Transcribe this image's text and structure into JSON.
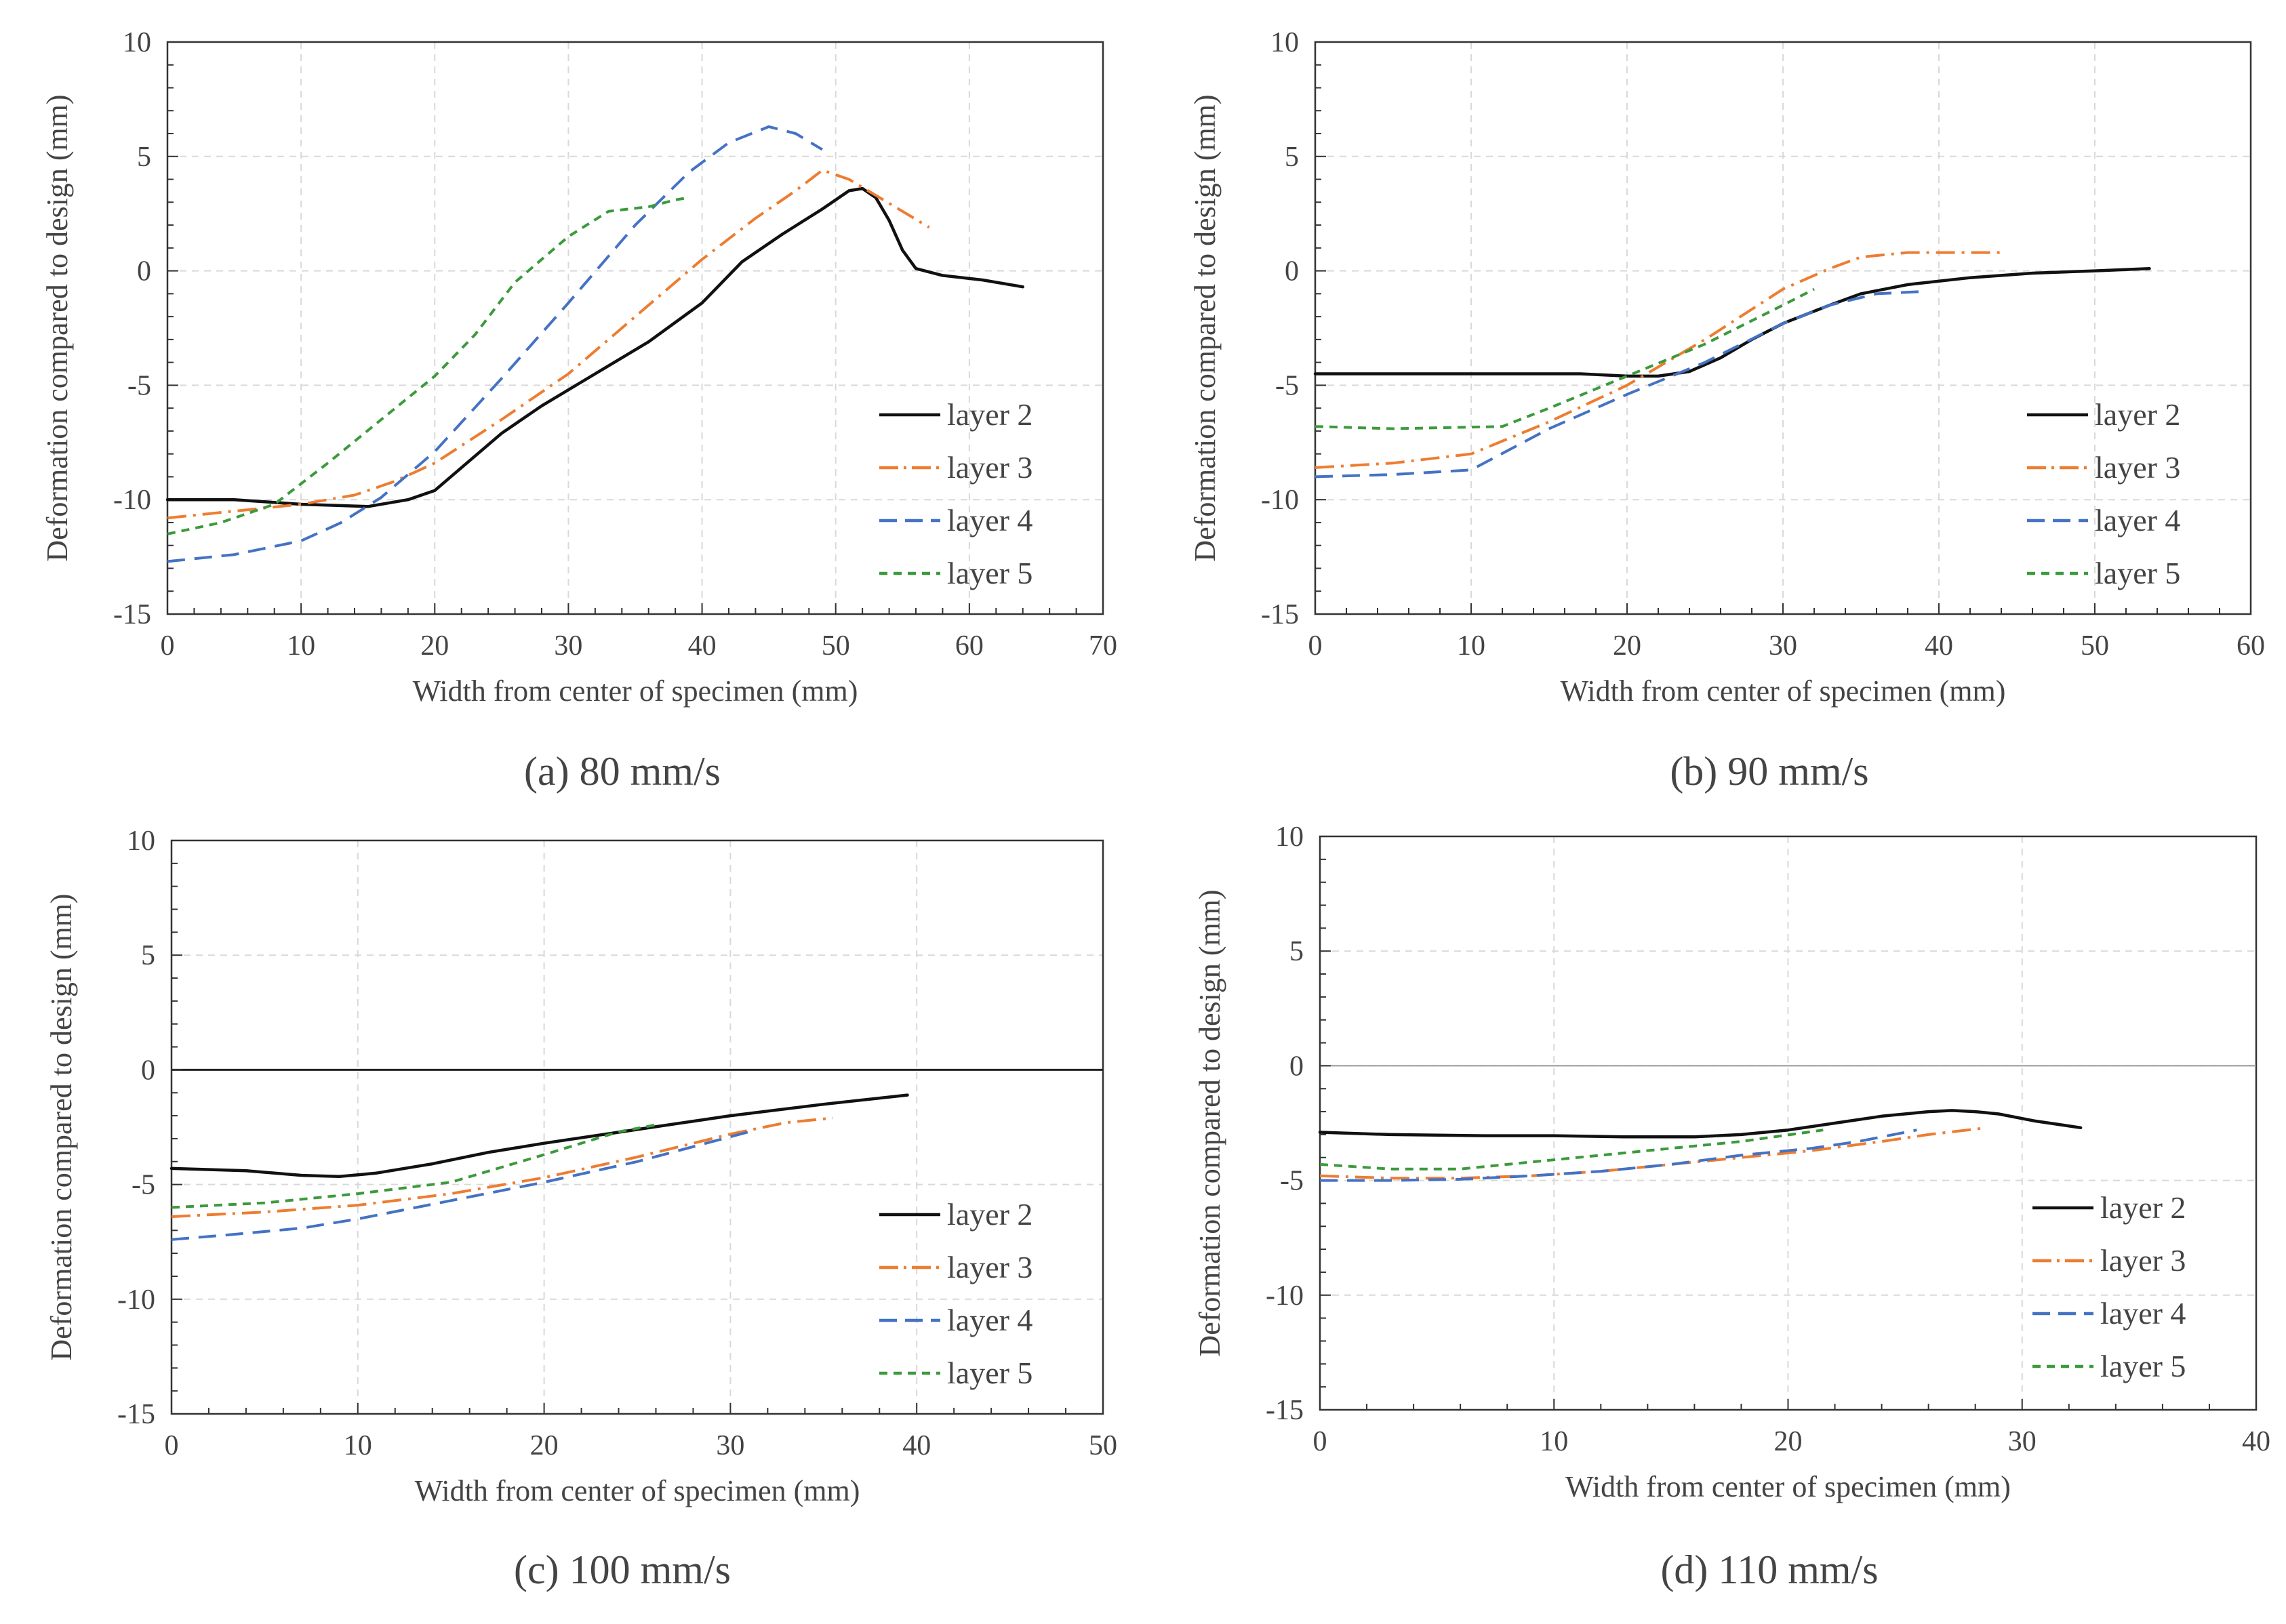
{
  "colors": {
    "layer2": "#111111",
    "layer3": "#ED7D31",
    "layer4": "#4472C4",
    "layer5": "#3C9A3C",
    "grid": "#D9D9D9",
    "axis": "#333333",
    "text": "#444444"
  },
  "chart_data": [
    {
      "type": "line",
      "caption": "(a) 80 mm/s",
      "xlabel": "Width from center of specimen (mm)",
      "ylabel": "Deformation compared to design (mm)",
      "xlim": [
        0,
        70
      ],
      "ylim": [
        -15,
        10
      ],
      "xticks": [
        0,
        10,
        20,
        30,
        40,
        50,
        60,
        70
      ],
      "yticks": [
        -15,
        -10,
        -5,
        0,
        5,
        10
      ],
      "grid": true,
      "zero_line": false,
      "legend_position": "bottom-right",
      "series": [
        {
          "name": "layer 2",
          "style": "solid",
          "color": "#111111",
          "x": [
            0,
            5,
            10,
            15,
            18,
            20,
            22,
            25,
            28,
            32,
            36,
            40,
            43,
            46,
            49,
            51,
            52,
            53,
            54,
            55,
            56,
            58,
            61,
            64
          ],
          "y": [
            -10,
            -10,
            -10.2,
            -10.3,
            -10,
            -9.6,
            -8.6,
            -7.1,
            -5.9,
            -4.5,
            -3.1,
            -1.4,
            0.4,
            1.6,
            2.7,
            3.5,
            3.6,
            3.2,
            2.2,
            0.9,
            0.1,
            -0.2,
            -0.4,
            -0.7
          ]
        },
        {
          "name": "layer 3",
          "style": "dashdot",
          "color": "#ED7D31",
          "x": [
            0,
            5,
            10,
            14,
            17,
            20,
            25,
            30,
            35,
            40,
            44,
            47,
            49,
            51,
            53,
            55,
            57
          ],
          "y": [
            -10.8,
            -10.5,
            -10.2,
            -9.8,
            -9.2,
            -8.4,
            -6.5,
            -4.5,
            -2.0,
            0.5,
            2.3,
            3.5,
            4.4,
            4.0,
            3.3,
            2.6,
            1.9
          ]
        },
        {
          "name": "layer 4",
          "style": "dashed",
          "color": "#4472C4",
          "x": [
            0,
            5,
            10,
            13,
            16,
            20,
            25,
            30,
            35,
            39,
            42,
            45,
            47,
            49
          ],
          "y": [
            -12.7,
            -12.4,
            -11.8,
            -11,
            -9.9,
            -7.9,
            -4.7,
            -1.4,
            2,
            4.3,
            5.6,
            6.3,
            6.0,
            5.3
          ]
        },
        {
          "name": "layer 5",
          "style": "dotted",
          "color": "#3C9A3C",
          "x": [
            0,
            4,
            8,
            12,
            16,
            20,
            23,
            26,
            30,
            33,
            36,
            38,
            39
          ],
          "y": [
            -11.5,
            -11,
            -10.2,
            -8.4,
            -6.5,
            -4.6,
            -2.8,
            -0.5,
            1.5,
            2.6,
            2.8,
            3.1,
            3.2
          ]
        }
      ]
    },
    {
      "type": "line",
      "caption": "(b) 90 mm/s",
      "xlabel": "Width from center of specimen (mm)",
      "ylabel": "Deformation compared to design (mm)",
      "xlim": [
        0,
        60
      ],
      "ylim": [
        -15,
        10
      ],
      "xticks": [
        0,
        10,
        20,
        30,
        40,
        50,
        60
      ],
      "yticks": [
        -15,
        -10,
        -5,
        0,
        5,
        10
      ],
      "grid": true,
      "zero_line": false,
      "legend_position": "bottom-right",
      "series": [
        {
          "name": "layer 2",
          "style": "solid",
          "color": "#111111",
          "x": [
            0,
            5,
            10,
            17,
            20,
            22,
            24,
            26,
            28,
            30,
            33,
            35,
            38,
            42,
            46,
            50,
            53.5
          ],
          "y": [
            -4.5,
            -4.5,
            -4.5,
            -4.5,
            -4.6,
            -4.6,
            -4.4,
            -3.8,
            -3.0,
            -2.3,
            -1.5,
            -1.0,
            -0.6,
            -0.3,
            -0.1,
            0.0,
            0.1
          ]
        },
        {
          "name": "layer 3",
          "style": "dashdot",
          "color": "#ED7D31",
          "x": [
            0,
            5,
            10,
            15,
            20,
            25,
            30,
            33,
            35,
            38,
            41,
            44
          ],
          "y": [
            -8.6,
            -8.4,
            -8.0,
            -6.6,
            -5.0,
            -3.0,
            -0.8,
            0.1,
            0.6,
            0.8,
            0.8,
            0.8
          ]
        },
        {
          "name": "layer 4",
          "style": "dashed",
          "color": "#4472C4",
          "x": [
            0,
            5,
            10,
            15,
            20,
            25,
            30,
            33,
            36,
            39
          ],
          "y": [
            -9.0,
            -8.9,
            -8.7,
            -6.9,
            -5.4,
            -4.0,
            -2.3,
            -1.5,
            -1.0,
            -0.9
          ]
        },
        {
          "name": "layer 5",
          "style": "dotted",
          "color": "#3C9A3C",
          "x": [
            0,
            5,
            12,
            15,
            20,
            25,
            30,
            32
          ],
          "y": [
            -6.8,
            -6.9,
            -6.8,
            -6.0,
            -4.6,
            -3.2,
            -1.5,
            -0.8
          ]
        }
      ]
    },
    {
      "type": "line",
      "caption": "(c) 100 mm/s",
      "xlabel": "Width from center of specimen (mm)",
      "ylabel": "Deformation compared to design (mm)",
      "xlim": [
        0,
        50
      ],
      "ylim": [
        -15,
        10
      ],
      "xticks": [
        0,
        10,
        20,
        30,
        40,
        50
      ],
      "yticks": [
        -15,
        -10,
        -5,
        0,
        5,
        10
      ],
      "grid": true,
      "zero_line": true,
      "legend_position": "bottom-right",
      "series": [
        {
          "name": "layer 2",
          "style": "solid",
          "color": "#111111",
          "x": [
            0,
            4,
            7,
            9,
            11,
            14,
            17,
            20,
            25,
            30,
            35,
            39.5
          ],
          "y": [
            -4.3,
            -4.4,
            -4.6,
            -4.65,
            -4.5,
            -4.1,
            -3.6,
            -3.2,
            -2.6,
            -2.0,
            -1.5,
            -1.1
          ]
        },
        {
          "name": "layer 3",
          "style": "dashdot",
          "color": "#ED7D31",
          "x": [
            0,
            5,
            10,
            15,
            20,
            25,
            30,
            33,
            35.5
          ],
          "y": [
            -6.4,
            -6.2,
            -5.9,
            -5.4,
            -4.7,
            -3.8,
            -2.8,
            -2.3,
            -2.1
          ]
        },
        {
          "name": "layer 4",
          "style": "dashed",
          "color": "#4472C4",
          "x": [
            0,
            3,
            7,
            10,
            15,
            20,
            25,
            31
          ],
          "y": [
            -7.4,
            -7.2,
            -6.9,
            -6.5,
            -5.7,
            -4.9,
            -4.0,
            -2.7
          ]
        },
        {
          "name": "layer 5",
          "style": "dotted",
          "color": "#3C9A3C",
          "x": [
            0,
            5,
            10,
            15,
            20,
            24,
            26
          ],
          "y": [
            -6.0,
            -5.8,
            -5.4,
            -4.9,
            -3.7,
            -2.7,
            -2.4
          ]
        }
      ]
    },
    {
      "type": "line",
      "caption": "(d) 110 mm/s",
      "xlabel": "Width from center of specimen (mm)",
      "ylabel": "Deformation compared to design (mm)",
      "xlim": [
        0,
        40
      ],
      "ylim": [
        -15,
        10
      ],
      "xticks": [
        0,
        10,
        20,
        30,
        40
      ],
      "yticks": [
        -15,
        -10,
        -5,
        0,
        5,
        10
      ],
      "grid": true,
      "zero_line": true,
      "legend_position": "bottom-right",
      "series": [
        {
          "name": "layer 2",
          "style": "solid",
          "color": "#111111",
          "x": [
            0,
            3,
            7,
            10,
            13,
            16,
            18,
            20,
            22,
            24,
            26,
            27,
            28,
            29,
            30.5,
            32.5
          ],
          "y": [
            -2.9,
            -3.0,
            -3.05,
            -3.05,
            -3.1,
            -3.1,
            -3.0,
            -2.8,
            -2.5,
            -2.2,
            -2.0,
            -1.95,
            -2.0,
            -2.1,
            -2.4,
            -2.7
          ]
        },
        {
          "name": "layer 3",
          "style": "dashdot",
          "color": "#ED7D31",
          "x": [
            0,
            3,
            6,
            9,
            12,
            15,
            18,
            21,
            24,
            26,
            28.5
          ],
          "y": [
            -4.8,
            -4.9,
            -4.9,
            -4.8,
            -4.6,
            -4.3,
            -4.0,
            -3.7,
            -3.3,
            -3.0,
            -2.7
          ]
        },
        {
          "name": "layer 4",
          "style": "dashed",
          "color": "#4472C4",
          "x": [
            0,
            3,
            6,
            9,
            12,
            15,
            18,
            21,
            23,
            25.5
          ],
          "y": [
            -5.0,
            -5.0,
            -4.95,
            -4.8,
            -4.6,
            -4.3,
            -3.9,
            -3.6,
            -3.3,
            -2.8
          ]
        },
        {
          "name": "layer 5",
          "style": "dotted",
          "color": "#3C9A3C",
          "x": [
            0,
            3,
            6,
            9,
            12,
            15,
            18,
            21.5
          ],
          "y": [
            -4.3,
            -4.5,
            -4.5,
            -4.2,
            -3.9,
            -3.6,
            -3.3,
            -2.8
          ]
        }
      ]
    }
  ]
}
